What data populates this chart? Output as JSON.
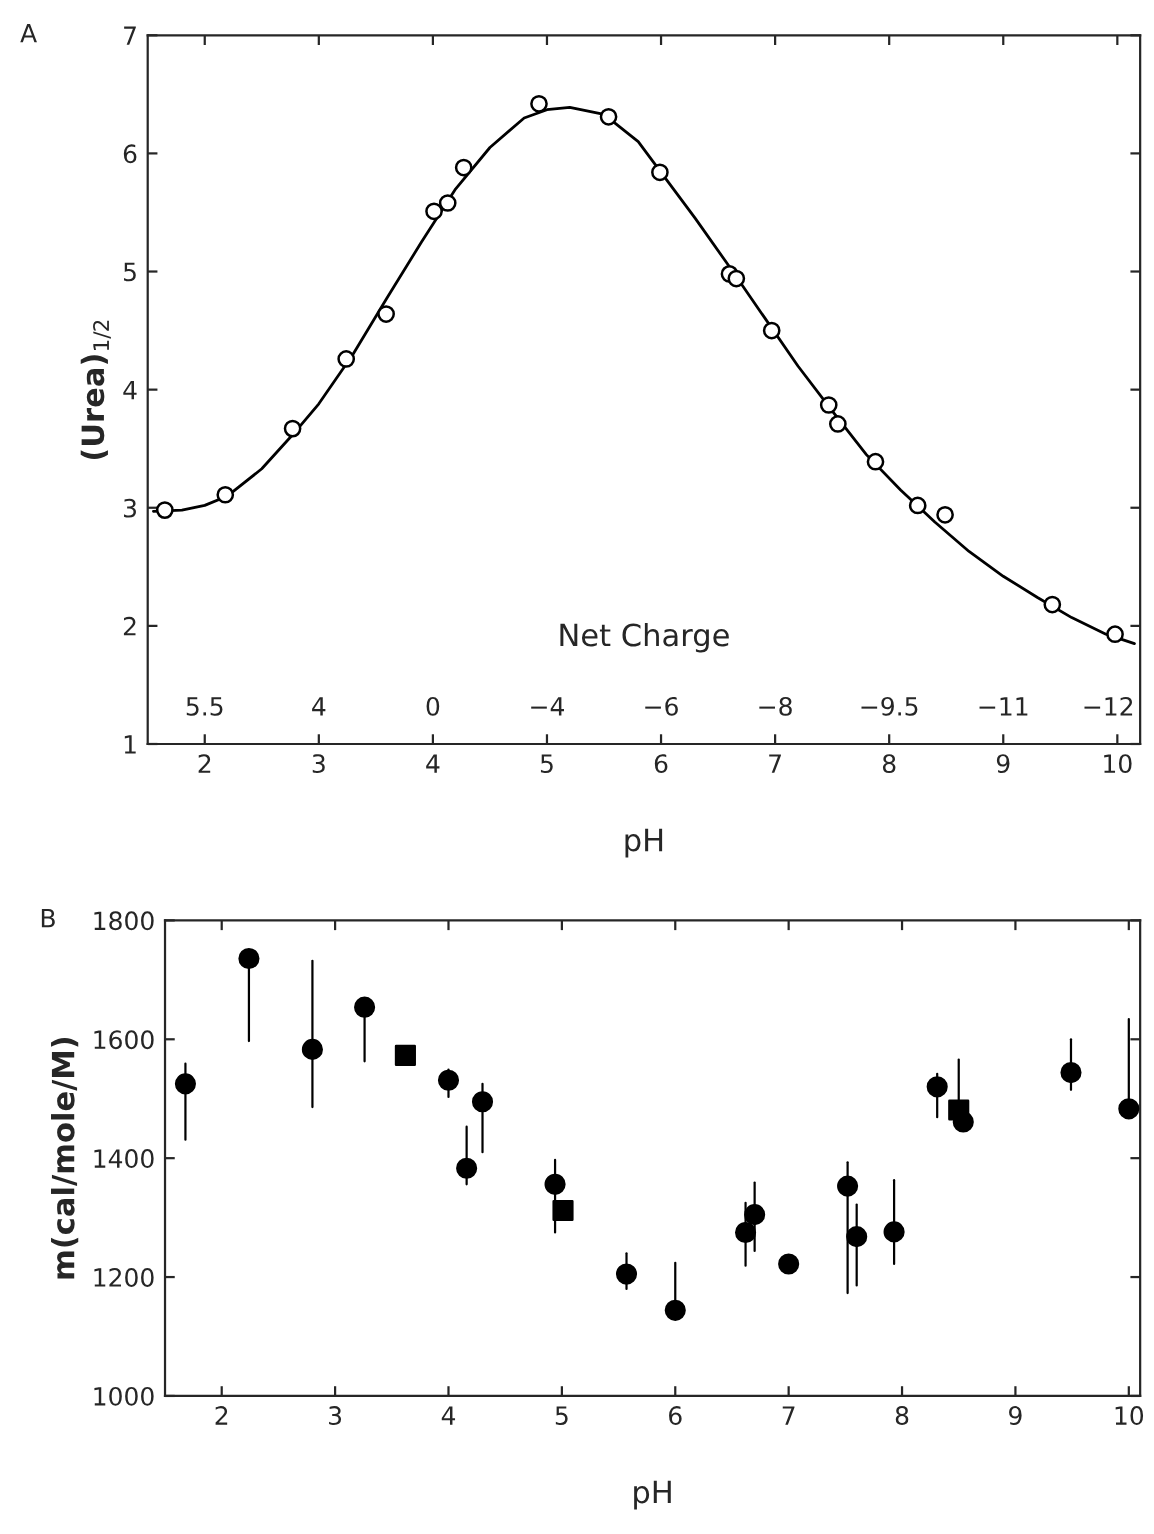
{
  "chart_data": [
    {
      "type": "scatter",
      "xlabel": "pH",
      "ylabel": "(Urea)$_{1/2}$",
      "annotations": [
        "A",
        "Net Charge",
        "5.5",
        "4",
        "0",
        "−4",
        "−6",
        "−8",
        "−9.5",
        "−11",
        "−12"
      ],
      "xlim": [
        1.5,
        10.2
      ],
      "xticks": [
        2,
        3,
        4,
        5,
        6,
        7,
        8,
        9,
        10
      ],
      "ylim": [
        1,
        7
      ],
      "yticks": [
        1,
        2,
        3,
        4,
        5,
        6,
        7
      ],
      "grid": false,
      "legend": false,
      "series": [
        {
          "type": "scatter",
          "marker": "circle",
          "color": "#000000",
          "x": [
            1.65,
            2.18,
            2.77,
            3.24,
            3.59,
            4.01,
            4.13,
            4.27,
            4.93,
            5.54,
            5.99,
            6.6,
            6.66,
            6.97,
            7.47,
            7.55,
            7.88,
            8.25,
            8.49,
            9.43,
            9.98
          ],
          "values": [
            2.98,
            3.11,
            3.67,
            4.26,
            4.64,
            5.51,
            5.58,
            5.88,
            6.42,
            6.31,
            5.84,
            4.98,
            4.94,
            4.5,
            3.87,
            3.71,
            3.39,
            3.02,
            2.94,
            2.18,
            1.93
          ]
        },
        {
          "type": "line",
          "marker": "none",
          "line_style": "solid",
          "color": "#000000",
          "x": [
            1.55,
            1.8,
            2.0,
            2.2,
            2.5,
            2.8,
            3.0,
            3.3,
            3.6,
            3.9,
            4.2,
            4.5,
            4.8,
            5.0,
            5.2,
            5.5,
            5.8,
            6.0,
            6.3,
            6.6,
            6.9,
            7.2,
            7.5,
            7.8,
            8.1,
            8.4,
            8.7,
            9.0,
            9.3,
            9.6,
            9.9,
            10.15
          ],
          "values": [
            2.97,
            2.98,
            3.02,
            3.1,
            3.33,
            3.65,
            3.88,
            4.3,
            4.78,
            5.25,
            5.7,
            6.05,
            6.3,
            6.37,
            6.39,
            6.33,
            6.1,
            5.84,
            5.45,
            5.04,
            4.62,
            4.2,
            3.82,
            3.45,
            3.15,
            2.88,
            2.63,
            2.42,
            2.24,
            2.07,
            1.93,
            1.85
          ]
        }
      ]
    },
    {
      "type": "scatter",
      "xlabel": "pH",
      "ylabel": "m(cal/mole/M)",
      "annotations": [
        "B"
      ],
      "xlim": [
        1.5,
        10.1
      ],
      "xticks": [
        2,
        3,
        4,
        5,
        6,
        7,
        8,
        9,
        10
      ],
      "ylim": [
        1000,
        1800
      ],
      "yticks": [
        1000,
        1200,
        1400,
        1600,
        1800
      ],
      "grid": false,
      "legend": false,
      "series": [
        {
          "type": "scatter",
          "marker": "circle",
          "color": "#000000",
          "x": [
            1.68,
            2.24,
            2.8,
            3.26,
            4.0,
            4.16,
            4.3,
            4.94,
            5.57,
            6.0,
            6.62,
            6.7,
            7.0,
            7.52,
            7.6,
            7.93,
            8.31,
            8.54,
            9.49,
            10.0
          ],
          "values": [
            1525,
            1736,
            1583,
            1654,
            1531,
            1383,
            1495,
            1356,
            1205,
            1144,
            1275,
            1305,
            1222,
            1353,
            1268,
            1276,
            1520,
            1461,
            1544,
            1483
          ],
          "errors": [
            [
              1431,
              1559
            ],
            [
              1597,
              1736
            ],
            [
              1486,
              1732
            ],
            [
              1563,
              1654
            ],
            [
              1503,
              1549
            ],
            [
              1356,
              1453
            ],
            [
              1410,
              1525
            ],
            [
              1275,
              1397
            ],
            [
              1180,
              1240
            ],
            [
              1144,
              1224
            ],
            [
              1219,
              1325
            ],
            [
              1244,
              1359
            ],
            null,
            [
              1173,
              1393
            ],
            [
              1186,
              1322
            ],
            [
              1222,
              1363
            ],
            [
              1469,
              1542
            ],
            null,
            [
              1515,
              1600
            ],
            [
              1483,
              1634
            ]
          ]
        },
        {
          "type": "scatter",
          "marker": "square",
          "color": "#000000",
          "x": [
            3.62,
            5.01,
            8.5
          ],
          "values": [
            1573,
            1312,
            1481
          ],
          "errors": [
            null,
            null,
            [
              1481,
              1566
            ]
          ]
        }
      ]
    }
  ]
}
